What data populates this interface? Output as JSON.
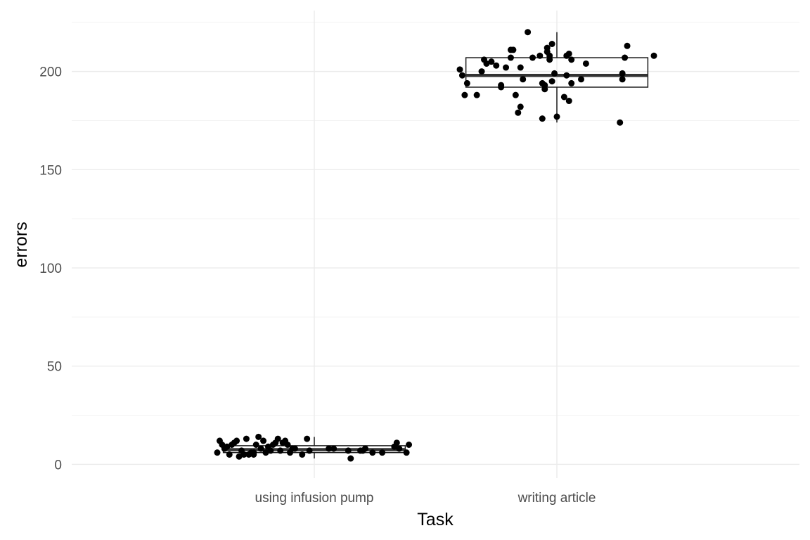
{
  "chart_data": {
    "type": "boxplot",
    "title": "",
    "xlabel": "Task",
    "ylabel": "errors",
    "ylim": [
      -7,
      231
    ],
    "y_ticks": [
      0,
      50,
      100,
      150,
      200
    ],
    "y_tick_labels": [
      "0",
      "50",
      "100",
      "150",
      "200"
    ],
    "grid": true,
    "categories": [
      "using infusion pump",
      "writing article"
    ],
    "boxes": [
      {
        "category": "using infusion pump",
        "whisker_low": 3,
        "q1": 6,
        "median": 7.5,
        "q3": 9.5,
        "whisker_high": 14
      },
      {
        "category": "writing article",
        "whisker_low": 174,
        "q1": 192,
        "median": 198,
        "q3": 207,
        "whisker_high": 220
      }
    ],
    "points": [
      {
        "category": "using infusion pump",
        "x_jitter": [
          -0.4,
          -0.39,
          -0.38,
          -0.37,
          -0.36,
          -0.35,
          -0.34,
          -0.33,
          -0.32,
          -0.31,
          -0.3,
          -0.29,
          -0.28,
          -0.27,
          -0.26,
          -0.25,
          -0.25,
          -0.24,
          -0.23,
          -0.22,
          -0.21,
          -0.2,
          -0.19,
          -0.18,
          -0.17,
          -0.16,
          -0.15,
          -0.14,
          -0.13,
          -0.12,
          -0.11,
          -0.1,
          -0.09,
          -0.08,
          -0.05,
          -0.03,
          -0.02,
          0.06,
          0.08,
          0.14,
          0.15,
          0.19,
          0.2,
          0.21,
          0.24,
          0.28,
          0.33,
          0.34,
          0.35,
          0.38,
          0.39
        ],
        "y": [
          6,
          12,
          10,
          8,
          9,
          5,
          10,
          11,
          12,
          4,
          7,
          5,
          13,
          5,
          6,
          6,
          5,
          10,
          14,
          8,
          12,
          6,
          9,
          7,
          10,
          11,
          13,
          7,
          11,
          12,
          10,
          6,
          8,
          8,
          5,
          13,
          7,
          8,
          8,
          7,
          3,
          7,
          7,
          8,
          6,
          6,
          9,
          11,
          8,
          6,
          10
        ]
      },
      {
        "category": "writing article",
        "x_jitter": [
          -0.4,
          -0.39,
          -0.38,
          -0.37,
          -0.33,
          -0.31,
          -0.3,
          -0.29,
          -0.27,
          -0.25,
          -0.23,
          -0.23,
          -0.21,
          -0.19,
          -0.19,
          -0.18,
          -0.17,
          -0.16,
          -0.15,
          -0.15,
          -0.14,
          -0.12,
          -0.1,
          -0.07,
          -0.06,
          -0.06,
          -0.05,
          -0.05,
          -0.04,
          -0.04,
          -0.03,
          -0.03,
          -0.02,
          -0.02,
          -0.01,
          0.0,
          0.03,
          0.04,
          0.04,
          0.05,
          0.06,
          0.05,
          0.06,
          0.1,
          0.12,
          0.26,
          0.27,
          0.27,
          0.28,
          0.29,
          0.4
        ],
        "y": [
          201,
          198,
          188,
          194,
          188,
          200,
          206,
          204,
          205,
          203,
          192,
          193,
          202,
          211,
          207,
          211,
          188,
          179,
          182,
          202,
          196,
          220,
          207,
          208,
          176,
          194,
          193,
          191,
          210,
          212,
          208,
          206,
          214,
          195,
          199,
          177,
          187,
          208,
          198,
          209,
          194,
          185,
          206,
          196,
          204,
          174,
          196,
          199,
          207,
          213,
          208
        ]
      }
    ]
  }
}
